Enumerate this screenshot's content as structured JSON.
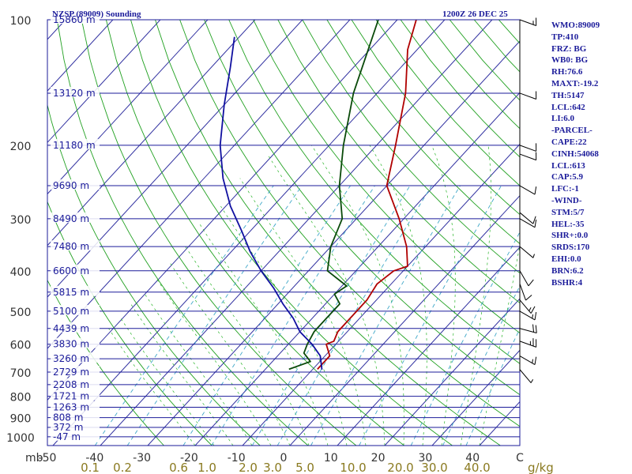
{
  "chart_data": {
    "type": "skew-t",
    "title_left": "NZSP (89009) Sounding",
    "title_right": "1200Z 26 DEC 25",
    "ylabel": "mb",
    "xlabel_units": "g/kg",
    "pressure_levels": [
      "100",
      "200",
      "300",
      "400",
      "500",
      "600",
      "700",
      "800",
      "900",
      "1000"
    ],
    "height_labels": [
      {
        "p": 100,
        "label": "15860 m"
      },
      {
        "p": 150,
        "label": "13120 m"
      },
      {
        "p": 200,
        "label": "11180 m"
      },
      {
        "p": 250,
        "label": "9690 m"
      },
      {
        "p": 300,
        "label": "8490 m"
      },
      {
        "p": 350,
        "label": "7480 m"
      },
      {
        "p": 400,
        "label": "6600 m"
      },
      {
        "p": 450,
        "label": "5815 m"
      },
      {
        "p": 500,
        "label": "5100 m"
      },
      {
        "p": 550,
        "label": "4439 m"
      },
      {
        "p": 600,
        "label": "3830 m"
      },
      {
        "p": 650,
        "label": "3260 m"
      },
      {
        "p": 700,
        "label": "2729 m"
      },
      {
        "p": 750,
        "label": "2208 m"
      },
      {
        "p": 800,
        "label": "1721 m"
      },
      {
        "p": 850,
        "label": "1263 m"
      },
      {
        "p": 900,
        "label": "808 m"
      },
      {
        "p": 950,
        "label": "372 m"
      },
      {
        "p": 1000,
        "label": "-47 m"
      }
    ],
    "temperature_ticks": [
      {
        "t": -50,
        "label": "-50"
      },
      {
        "t": -40,
        "label": "-40"
      },
      {
        "t": -30,
        "label": "-30"
      },
      {
        "t": -20,
        "label": "-20"
      },
      {
        "t": -10,
        "label": "-10"
      },
      {
        "t": 0,
        "label": "0"
      },
      {
        "t": 10,
        "label": "10"
      },
      {
        "t": 20,
        "label": "20"
      },
      {
        "t": 30,
        "label": "30"
      },
      {
        "t": 40,
        "label": "40"
      },
      {
        "t": 50,
        "label": "C"
      }
    ],
    "mixing_ratio_labels": [
      "0.1",
      "0.2",
      "0.6",
      "1.0",
      "2.0",
      "3.0",
      "5.0",
      "10.0",
      "20.0",
      "30.0",
      "40.0"
    ],
    "series": [
      {
        "name": "temperature",
        "color": "#b00000",
        "points": [
          [
            -9,
            689
          ],
          [
            -9,
            640
          ],
          [
            -12,
            600
          ],
          [
            -11,
            590
          ],
          [
            -12,
            560
          ],
          [
            -12,
            470
          ],
          [
            -13,
            430
          ],
          [
            -12,
            400
          ],
          [
            -10,
            390
          ],
          [
            -14,
            350
          ],
          [
            -21,
            300
          ],
          [
            -30,
            250
          ],
          [
            -36,
            200
          ],
          [
            -44,
            150
          ],
          [
            -52,
            118
          ],
          [
            -56,
            100
          ]
        ]
      },
      {
        "name": "dewpoint",
        "color": "#0a4a0a",
        "points": [
          [
            -15,
            689
          ],
          [
            -12,
            660
          ],
          [
            -15,
            630
          ],
          [
            -16,
            600
          ],
          [
            -17,
            560
          ],
          [
            -17,
            520
          ],
          [
            -17,
            480
          ],
          [
            -20,
            455
          ],
          [
            -19,
            435
          ],
          [
            -26,
            400
          ],
          [
            -30,
            350
          ],
          [
            -33,
            300
          ],
          [
            -40,
            250
          ],
          [
            -47,
            200
          ],
          [
            -55,
            150
          ],
          [
            -64,
            100
          ]
        ]
      },
      {
        "name": "parcel",
        "color": "#1010a0",
        "points": [
          [
            -8,
            690
          ],
          [
            -11,
            640
          ],
          [
            -15,
            600
          ],
          [
            -20,
            560
          ],
          [
            -24,
            520
          ],
          [
            -29,
            480
          ],
          [
            -34,
            440
          ],
          [
            -40,
            400
          ],
          [
            -46,
            360
          ],
          [
            -52,
            320
          ],
          [
            -59,
            280
          ],
          [
            -66,
            240
          ],
          [
            -73,
            200
          ],
          [
            -80,
            160
          ],
          [
            -86,
            130
          ],
          [
            -91,
            110
          ]
        ]
      }
    ],
    "wind_barbs": [
      {
        "p": 690,
        "dir": 320,
        "kt": 5
      },
      {
        "p": 640,
        "dir": 300,
        "kt": 15
      },
      {
        "p": 590,
        "dir": 290,
        "kt": 25
      },
      {
        "p": 550,
        "dir": 285,
        "kt": 20
      },
      {
        "p": 500,
        "dir": 300,
        "kt": 15
      },
      {
        "p": 470,
        "dir": 320,
        "kt": 15
      },
      {
        "p": 430,
        "dir": 340,
        "kt": 10
      },
      {
        "p": 400,
        "dir": 330,
        "kt": 10
      },
      {
        "p": 350,
        "dir": 310,
        "kt": 5
      },
      {
        "p": 300,
        "dir": 300,
        "kt": 10
      },
      {
        "p": 290,
        "dir": 310,
        "kt": 10
      },
      {
        "p": 250,
        "dir": 300,
        "kt": 10
      },
      {
        "p": 210,
        "dir": 290,
        "kt": 10
      },
      {
        "p": 200,
        "dir": 290,
        "kt": 10
      },
      {
        "p": 150,
        "dir": 290,
        "kt": 10
      },
      {
        "p": 100,
        "dir": 290,
        "kt": 15
      }
    ]
  },
  "indices": [
    "WMO:89009",
    "TP:410",
    "FRZ: BG",
    "WB0: BG",
    "RH:76.6",
    "MAXT:-19.2",
    "TH:5147",
    "LCL:642",
    "LI:6.0",
    "-PARCEL-",
    "CAPE:22",
    "CINH:54068",
    "LCL:613",
    "CAP:5.9",
    "LFC:-1",
    "-WIND-",
    "STM:5/7",
    "HEL:-35",
    "SHR+:0.0",
    "SRDS:170",
    "EHI:0.0",
    "BRN:6.2",
    "BSHR:4"
  ],
  "colors": {
    "isobar": "#1b1b9a",
    "isotherm": "#3030a0",
    "dry_adiabat": "#20a020",
    "moist_adiabat": "#28b428",
    "mixing_ratio": "#40a8c8",
    "label_blue": "#1b1b9a",
    "axis_text": "#333333",
    "mixing_label": "#8a7a20"
  }
}
